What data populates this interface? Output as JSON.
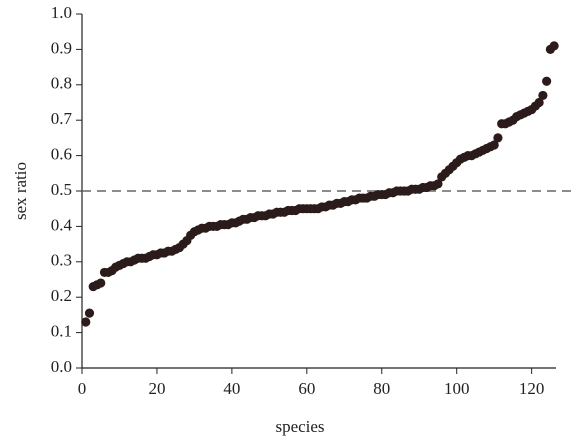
{
  "chart_data": {
    "type": "scatter",
    "x_label": "species",
    "y_label": "sex ratio",
    "x": [
      1,
      2,
      3,
      4,
      5,
      6,
      7,
      8,
      9,
      10,
      11,
      12,
      13,
      14,
      15,
      16,
      17,
      18,
      19,
      20,
      21,
      22,
      23,
      24,
      25,
      26,
      27,
      28,
      29,
      30,
      31,
      32,
      33,
      34,
      35,
      36,
      37,
      38,
      39,
      40,
      41,
      42,
      43,
      44,
      45,
      46,
      47,
      48,
      49,
      50,
      51,
      52,
      53,
      54,
      55,
      56,
      57,
      58,
      59,
      60,
      61,
      62,
      63,
      64,
      65,
      66,
      67,
      68,
      69,
      70,
      71,
      72,
      73,
      74,
      75,
      76,
      77,
      78,
      79,
      80,
      81,
      82,
      83,
      84,
      85,
      86,
      87,
      88,
      89,
      90,
      91,
      92,
      93,
      94,
      95,
      96,
      97,
      98,
      99,
      100,
      101,
      102,
      103,
      104,
      105,
      106,
      107,
      108,
      109,
      110,
      111,
      112,
      113,
      114,
      115,
      116,
      117,
      118,
      119,
      120,
      121,
      122,
      123,
      124,
      125,
      126
    ],
    "values": [
      0.13,
      0.155,
      0.23,
      0.235,
      0.24,
      0.27,
      0.27,
      0.275,
      0.285,
      0.29,
      0.295,
      0.3,
      0.3,
      0.305,
      0.31,
      0.31,
      0.31,
      0.315,
      0.32,
      0.32,
      0.325,
      0.325,
      0.33,
      0.33,
      0.335,
      0.34,
      0.35,
      0.36,
      0.375,
      0.385,
      0.39,
      0.395,
      0.395,
      0.4,
      0.4,
      0.4,
      0.405,
      0.405,
      0.405,
      0.41,
      0.41,
      0.415,
      0.42,
      0.42,
      0.425,
      0.425,
      0.43,
      0.43,
      0.43,
      0.435,
      0.435,
      0.44,
      0.44,
      0.44,
      0.445,
      0.445,
      0.445,
      0.45,
      0.45,
      0.45,
      0.45,
      0.45,
      0.45,
      0.455,
      0.455,
      0.46,
      0.46,
      0.465,
      0.465,
      0.47,
      0.47,
      0.475,
      0.475,
      0.48,
      0.48,
      0.48,
      0.485,
      0.485,
      0.49,
      0.49,
      0.49,
      0.495,
      0.495,
      0.5,
      0.5,
      0.5,
      0.5,
      0.505,
      0.505,
      0.505,
      0.51,
      0.51,
      0.515,
      0.515,
      0.52,
      0.54,
      0.55,
      0.56,
      0.57,
      0.58,
      0.59,
      0.595,
      0.6,
      0.6,
      0.605,
      0.61,
      0.615,
      0.62,
      0.625,
      0.63,
      0.65,
      0.69,
      0.69,
      0.695,
      0.7,
      0.71,
      0.715,
      0.72,
      0.725,
      0.73,
      0.74,
      0.75,
      0.77,
      0.81,
      0.9,
      0.91
    ],
    "color": "#2b1b1b",
    "xlim": [
      0,
      126.5
    ],
    "xticks": [
      0,
      20,
      40,
      60,
      80,
      100,
      120
    ],
    "ylim": [
      0,
      1
    ],
    "yticks": [
      {
        "value": 0,
        "label": "0.0"
      },
      0.1,
      0.2,
      0.3,
      0.4,
      0.5,
      0.6,
      0.7,
      0.8,
      0.9,
      {
        "value": 1,
        "label": "1.0"
      }
    ],
    "reference_line": {
      "y": 0.5,
      "color": "#666666",
      "dashed": true
    }
  }
}
